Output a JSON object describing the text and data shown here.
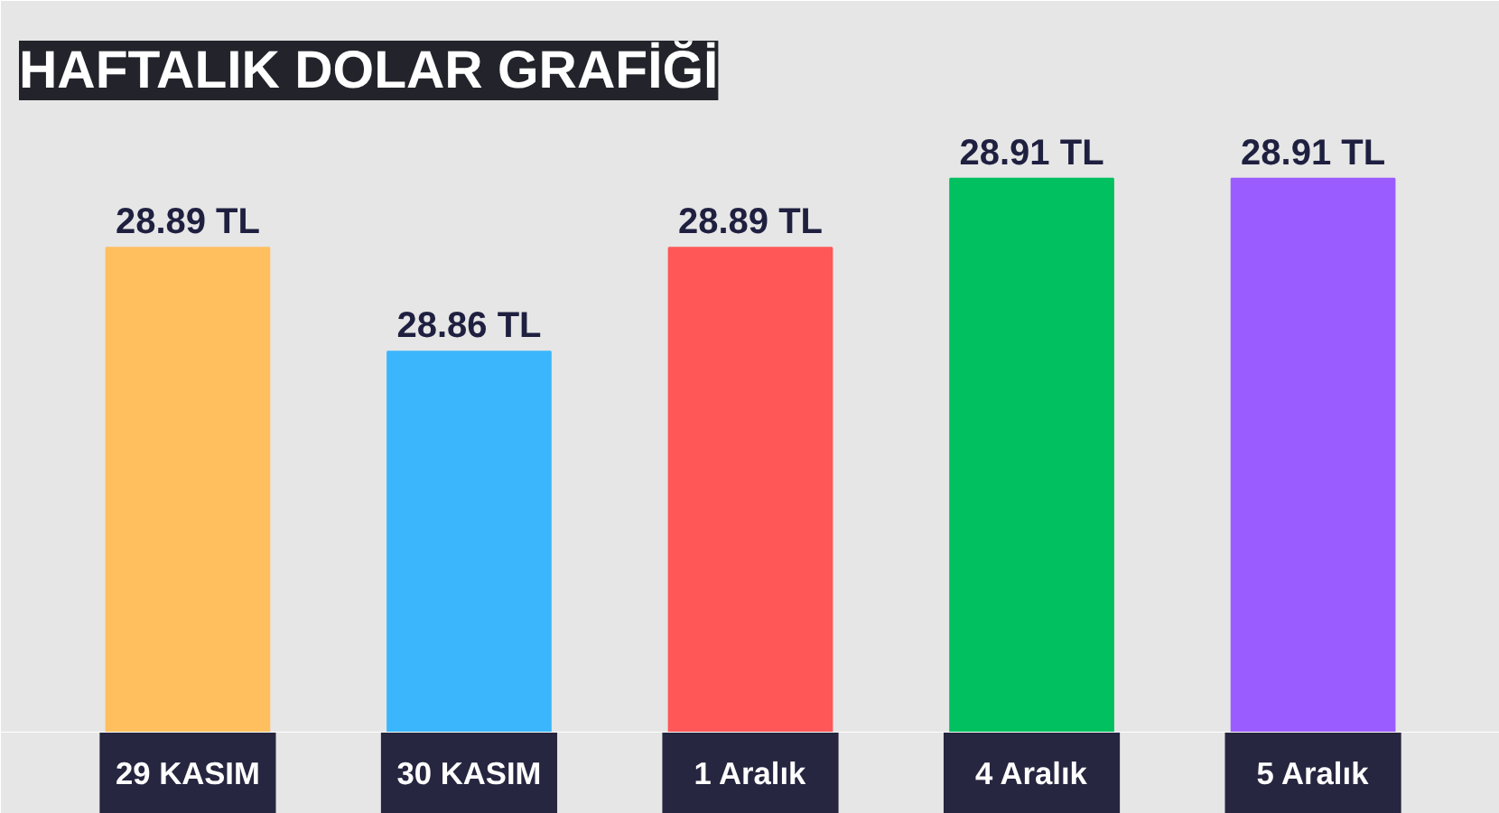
{
  "chart_data": {
    "type": "bar",
    "title": "HAFTALIK DOLAR GRAFİĞİ",
    "categories": [
      "29 KASIM",
      "30 KASIM",
      "1 Aralık",
      "4 Aralık",
      "5 Aralık"
    ],
    "values": [
      28.89,
      28.86,
      28.89,
      28.91,
      28.91
    ],
    "colors": [
      "#ffbf5f",
      "#3bb6fd",
      "#ff5757",
      "#00c060",
      "#9b5cff"
    ],
    "value_labels": [
      "28.89 TL",
      "28.86 TL",
      "28.89 TL",
      "28.91 TL",
      "28.91 TL"
    ],
    "ylim": [
      28.75,
      28.93
    ],
    "tick_labels": false
  }
}
